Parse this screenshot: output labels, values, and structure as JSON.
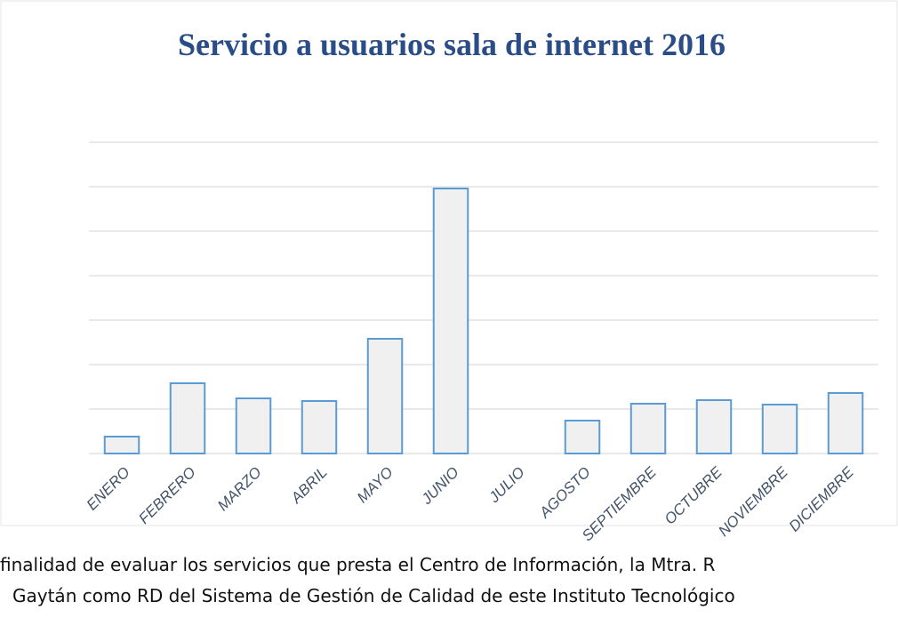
{
  "chart_data": {
    "type": "bar",
    "title": "Servicio a usuarios sala de internet 2016",
    "categories": [
      "ENERO",
      "FEBRERO",
      "MARZO",
      "ABRIL",
      "MAYO",
      "JUNIO",
      "JULIO",
      "AGOSTO",
      "SEPTIEMBRE",
      "OCTUBRE",
      "NOVIEMBRE",
      "DICIEMBRE"
    ],
    "values": [
      0.38,
      1.58,
      1.24,
      1.18,
      2.58,
      5.96,
      0,
      0.74,
      1.12,
      1.2,
      1.1,
      1.36
    ],
    "color": "#f0f0f0",
    "edge_color": "#5b9bd5",
    "ylim": [
      0,
      7
    ],
    "yticks": [
      0,
      1,
      2,
      3,
      4,
      5,
      6,
      7
    ],
    "grid": true,
    "tick_labels": false
  },
  "body_text": [
    "finalidad de evaluar los servicios que presta el Centro de Información, la Mtra. R",
    "Gaytán como RD del Sistema de Gestión de Calidad de este Instituto Tecnológico"
  ]
}
